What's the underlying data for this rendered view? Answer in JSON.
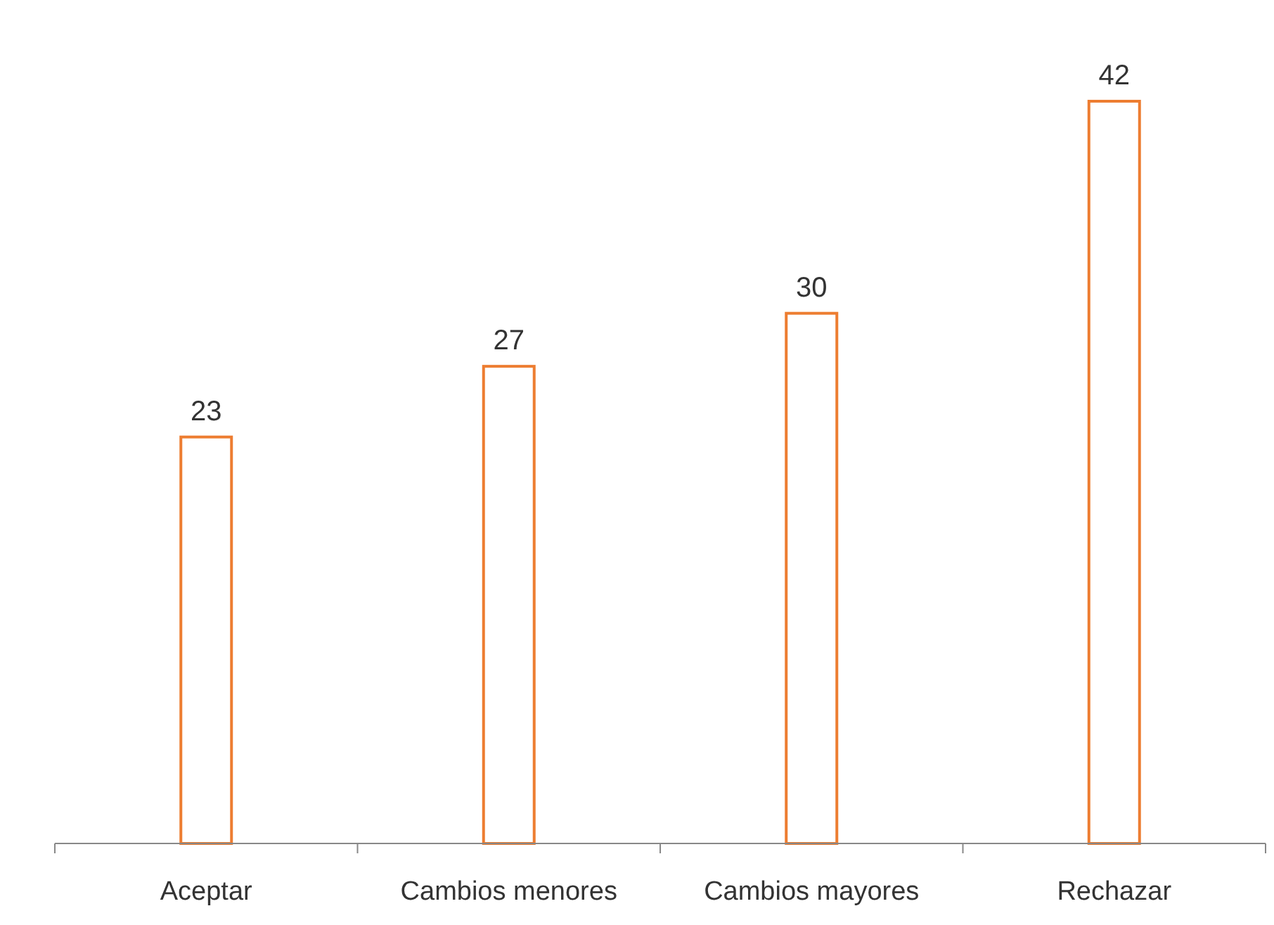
{
  "chart_data": {
    "type": "bar",
    "categories": [
      "Aceptar",
      "Cambios menores",
      "Cambios mayores",
      "Rechazar"
    ],
    "values": [
      23,
      27,
      30,
      42
    ],
    "color": "#ed7d31",
    "data_labels": true
  }
}
